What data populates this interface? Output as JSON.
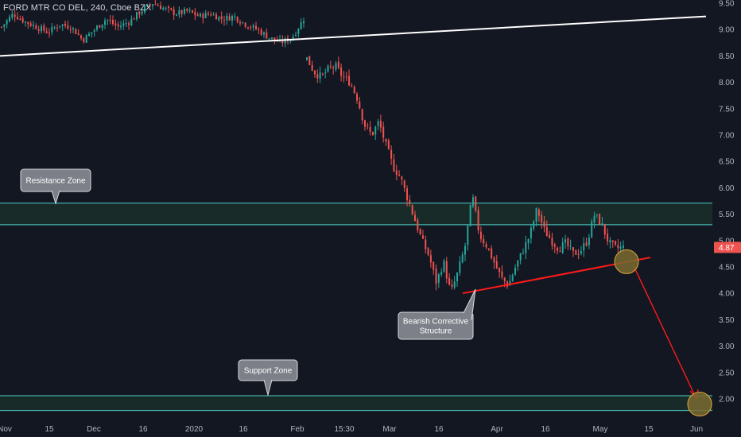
{
  "header": {
    "symbol_line": "FORD MTR CO DEL, 240, Cboe BZX"
  },
  "colors": {
    "background": "#131722",
    "up": "#26a69a",
    "down": "#ef5350",
    "zone_line": "#4dd0c8",
    "zone_fill": "#1a2e2a",
    "trend_white": "#ffffff",
    "trend_red": "#ff1a1a",
    "circle_fill": "#7a6a30",
    "circle_stroke": "#e0a838",
    "callout_fill": "#7d8088",
    "callout_stroke": "#d9dadd",
    "price_badge": "#ef5350"
  },
  "chart_data": {
    "type": "candlestick",
    "y_axis": {
      "min": 1.78,
      "max": 9.5,
      "ticks": [
        "9.50",
        "9.00",
        "8.50",
        "8.00",
        "7.50",
        "7.00",
        "6.50",
        "6.00",
        "5.50",
        "5.00",
        "4.50",
        "4.00",
        "3.50",
        "3.00",
        "2.50",
        "2.00"
      ]
    },
    "x_axis": {
      "ticks": [
        "Nov",
        "15",
        "Dec",
        "16",
        "2020",
        "16",
        "Feb",
        "15:30",
        "Mar",
        "16",
        "Apr",
        "16",
        "May",
        "15",
        "Jun"
      ]
    },
    "current_price": "4.87",
    "zones": [
      {
        "name": "Resistance Zone",
        "top": 5.71,
        "bottom": 5.3
      },
      {
        "name": "Support Zone",
        "top": 2.06,
        "bottom": 1.78
      }
    ],
    "annotations": [
      {
        "text_lines": [
          "Resistance Zone"
        ]
      },
      {
        "text_lines": [
          "Bearish Corrective",
          "Structure"
        ]
      },
      {
        "text_lines": [
          "Support Zone"
        ]
      }
    ],
    "path_points": [
      [
        9.05,
        9.3,
        9.15,
        9.05,
        8.95,
        9.1,
        9.05,
        8.8,
        9.0,
        9.2,
        9.05,
        9.15,
        9.35,
        9.5,
        9.4,
        9.3,
        9.35,
        9.25,
        9.3,
        9.2,
        9.25,
        9.1,
        9.0,
        8.85,
        8.75,
        8.85,
        9.2
      ],
      [
        8.45,
        8.2,
        8.1,
        8.25,
        8.3,
        8.1,
        8.0,
        7.7,
        7.2,
        7.0,
        7.25,
        6.8,
        6.4,
        6.2,
        5.8,
        5.4,
        5.0,
        4.7,
        4.2,
        4.6,
        4.0,
        4.4,
        4.9,
        5.85,
        5.1,
        4.9,
        4.6,
        4.3,
        4.15,
        4.5,
        4.8,
        5.1,
        5.6,
        5.2,
        5.0,
        4.85,
        4.95,
        4.75,
        4.8,
        5.0,
        5.5,
        5.3,
        4.95,
        4.85,
        4.87
      ]
    ],
    "trendlines": [
      {
        "name": "white-trendline",
        "from": [
          "Nov",
          8.5
        ],
        "to": [
          "Jun",
          9.25
        ]
      },
      {
        "name": "red-support-trendline",
        "from": [
          "Mar 24",
          4.0
        ],
        "to": [
          "May 15",
          4.68
        ]
      }
    ],
    "projection": {
      "from": 4.6,
      "to": 1.9
    }
  }
}
